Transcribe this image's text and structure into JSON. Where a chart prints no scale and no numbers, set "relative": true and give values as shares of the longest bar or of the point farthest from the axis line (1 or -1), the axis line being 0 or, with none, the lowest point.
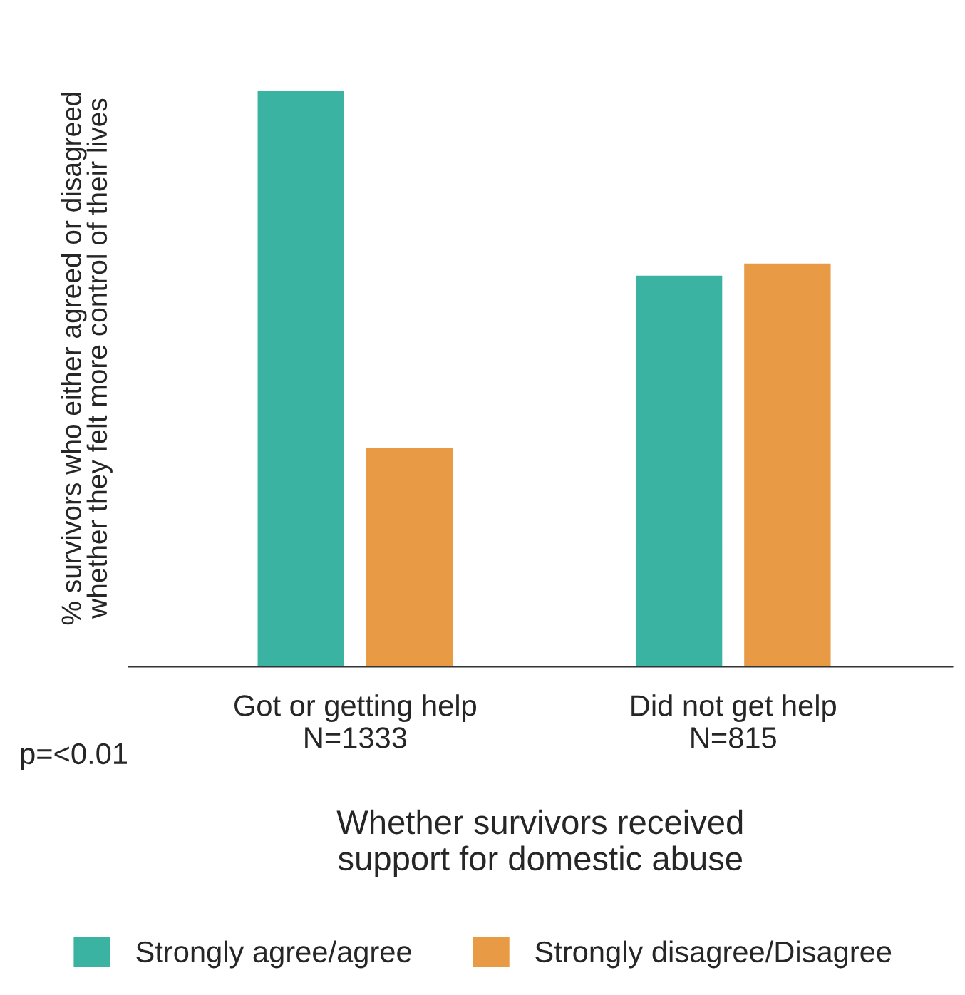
{
  "chart_data": {
    "type": "bar",
    "relative": true,
    "ylabel": "% survivors who either agreed or disagreed\nwhether they felt more control of their lives",
    "xlabel": "Whether survivors received\nsupport for domestic abuse",
    "categories": [
      "Got or getting help\nN=1333",
      "Did not get help\nN=815"
    ],
    "series": [
      {
        "name": "Strongly agree/agree",
        "color": "#3bb3a2",
        "values": [
          1.0,
          0.68
        ]
      },
      {
        "name": "Strongly disagree/Disagree",
        "color": "#e89a45",
        "values": [
          0.381,
          0.701
        ]
      }
    ],
    "annotations": [
      "p=<0.01"
    ],
    "legend": "bottom",
    "grid": false
  }
}
